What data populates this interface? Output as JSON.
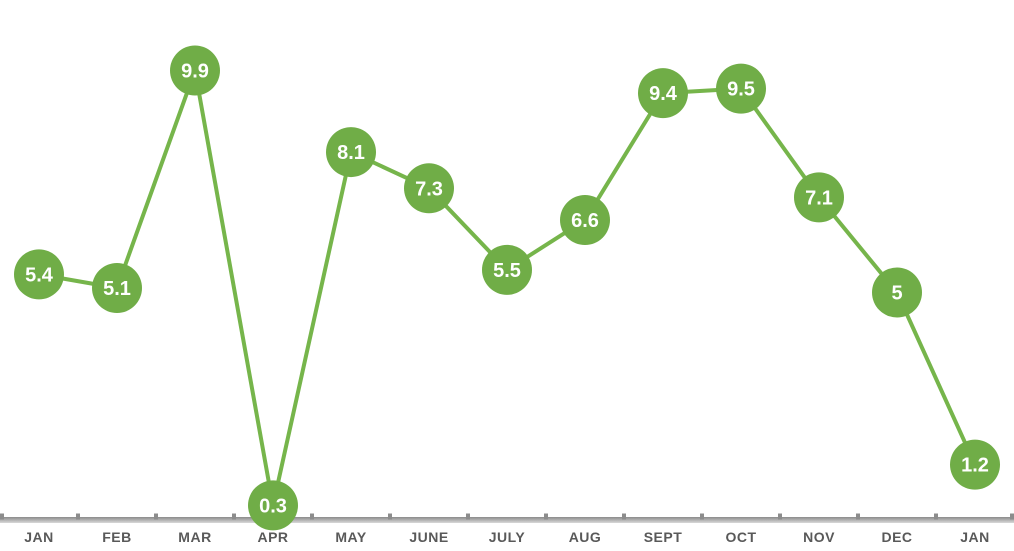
{
  "chart_data": {
    "type": "line",
    "title": "",
    "xlabel": "",
    "ylabel": "",
    "categories": [
      "JAN",
      "FEB",
      "MAR",
      "APR",
      "MAY",
      "JUNE",
      "JULY",
      "AUG",
      "SEPT",
      "OCT",
      "NOV",
      "DEC",
      "JAN"
    ],
    "series": [
      {
        "name": "monthly-values",
        "values": [
          5.4,
          5.1,
          9.9,
          0.3,
          8.1,
          7.3,
          5.5,
          6.6,
          9.4,
          9.5,
          7.1,
          5,
          1.2
        ],
        "data_labels": [
          "5.4",
          "5.1",
          "9.9",
          "0.3",
          "8.1",
          "7.3",
          "5.5",
          "6.6",
          "9.4",
          "9.5",
          "7.1",
          "5",
          "1.2"
        ]
      }
    ],
    "ylim": [
      0,
      10
    ],
    "grid": false,
    "legend": "none",
    "y_axis_visible": false,
    "x_axis": {
      "position": "bottom",
      "tick_marks": true
    },
    "marker_style": "filled-circle-with-label",
    "colors": {
      "marker_fill": "#70AD47",
      "line": "#76B54B",
      "marker_label_text": "#FFFFFF",
      "axis_line_top": "#8A8A8A",
      "axis_line_mid": "#ADADAD",
      "axis_line_bottom": "#D8D8D8",
      "axis_tick": "#8C8C8C",
      "axis_label": "#595959",
      "background": "#FFFFFF"
    }
  }
}
